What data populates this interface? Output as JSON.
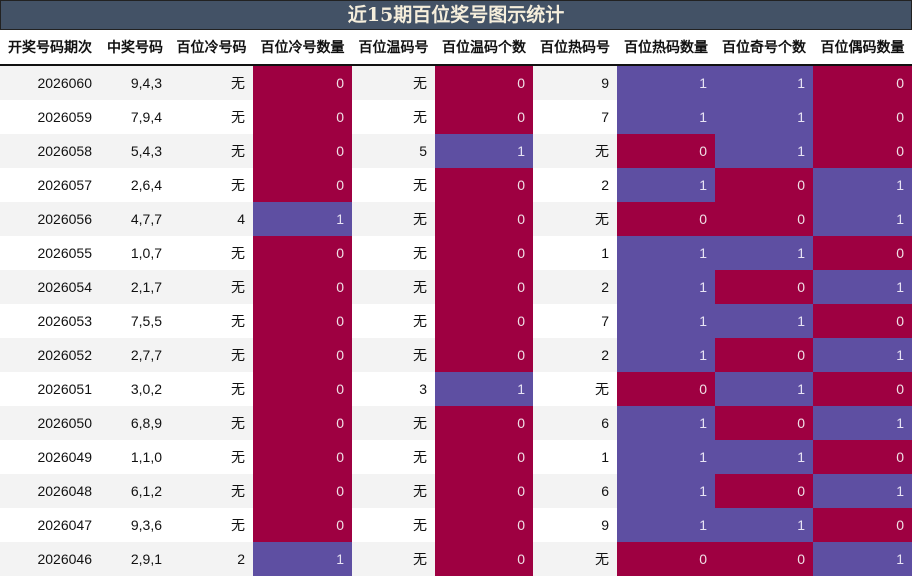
{
  "title": "近15期百位奖号图示统计",
  "colors": {
    "zero": "#9e0041",
    "one": "#5e4fa2",
    "title_bg": "#435266"
  },
  "headers": [
    "开奖号码期次",
    "中奖号码",
    "百位冷号码",
    "百位冷号数量",
    "百位温码号",
    "百位温码个数",
    "百位热码号",
    "百位热码数量",
    "百位奇号个数",
    "百位偶码数量"
  ],
  "rows": [
    [
      "2026060",
      "9,4,3",
      "无",
      "0",
      "无",
      "0",
      "9",
      "1",
      "1",
      "0"
    ],
    [
      "2026059",
      "7,9,4",
      "无",
      "0",
      "无",
      "0",
      "7",
      "1",
      "1",
      "0"
    ],
    [
      "2026058",
      "5,4,3",
      "无",
      "0",
      "5",
      "1",
      "无",
      "0",
      "1",
      "0"
    ],
    [
      "2026057",
      "2,6,4",
      "无",
      "0",
      "无",
      "0",
      "2",
      "1",
      "0",
      "1"
    ],
    [
      "2026056",
      "4,7,7",
      "4",
      "1",
      "无",
      "0",
      "无",
      "0",
      "0",
      "1"
    ],
    [
      "2026055",
      "1,0,7",
      "无",
      "0",
      "无",
      "0",
      "1",
      "1",
      "1",
      "0"
    ],
    [
      "2026054",
      "2,1,7",
      "无",
      "0",
      "无",
      "0",
      "2",
      "1",
      "0",
      "1"
    ],
    [
      "2026053",
      "7,5,5",
      "无",
      "0",
      "无",
      "0",
      "7",
      "1",
      "1",
      "0"
    ],
    [
      "2026052",
      "2,7,7",
      "无",
      "0",
      "无",
      "0",
      "2",
      "1",
      "0",
      "1"
    ],
    [
      "2026051",
      "3,0,2",
      "无",
      "0",
      "3",
      "1",
      "无",
      "0",
      "1",
      "0"
    ],
    [
      "2026050",
      "6,8,9",
      "无",
      "0",
      "无",
      "0",
      "6",
      "1",
      "0",
      "1"
    ],
    [
      "2026049",
      "1,1,0",
      "无",
      "0",
      "无",
      "0",
      "1",
      "1",
      "1",
      "0"
    ],
    [
      "2026048",
      "6,1,2",
      "无",
      "0",
      "无",
      "0",
      "6",
      "1",
      "0",
      "1"
    ],
    [
      "2026047",
      "9,3,6",
      "无",
      "0",
      "无",
      "0",
      "9",
      "1",
      "1",
      "0"
    ],
    [
      "2026046",
      "2,9,1",
      "2",
      "1",
      "无",
      "0",
      "无",
      "0",
      "0",
      "1"
    ]
  ]
}
